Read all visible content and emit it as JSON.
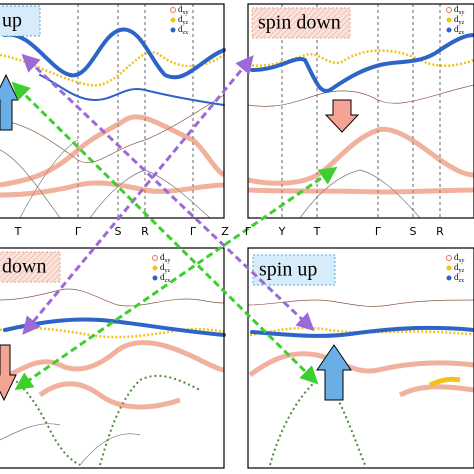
{
  "panels": [
    {
      "label": "up",
      "legend": [
        {
          "base": "d",
          "sub": "xy"
        },
        {
          "base": "d",
          "sub": "yz"
        },
        {
          "base": "d",
          "sub": "zx"
        }
      ],
      "k_points": [
        "T",
        "Γ",
        "S",
        "R",
        "Γ",
        "Z"
      ]
    },
    {
      "label": "spin down",
      "legend": [
        {
          "base": "d",
          "sub": "xy"
        },
        {
          "base": "d",
          "sub": "yz"
        },
        {
          "base": "d",
          "sub": "zx"
        }
      ],
      "k_points": [
        "Γ",
        "Y",
        "T",
        "Γ",
        "S",
        "R"
      ]
    },
    {
      "label": "down",
      "legend": [
        {
          "base": "d",
          "sub": "xy"
        },
        {
          "base": "d",
          "sub": "yz"
        },
        {
          "base": "d",
          "sub": "zx"
        }
      ]
    },
    {
      "label": "spin up",
      "legend": [
        {
          "base": "d",
          "sub": "xy"
        },
        {
          "base": "d",
          "sub": "yz"
        },
        {
          "base": "d",
          "sub": "zx"
        }
      ]
    }
  ]
}
